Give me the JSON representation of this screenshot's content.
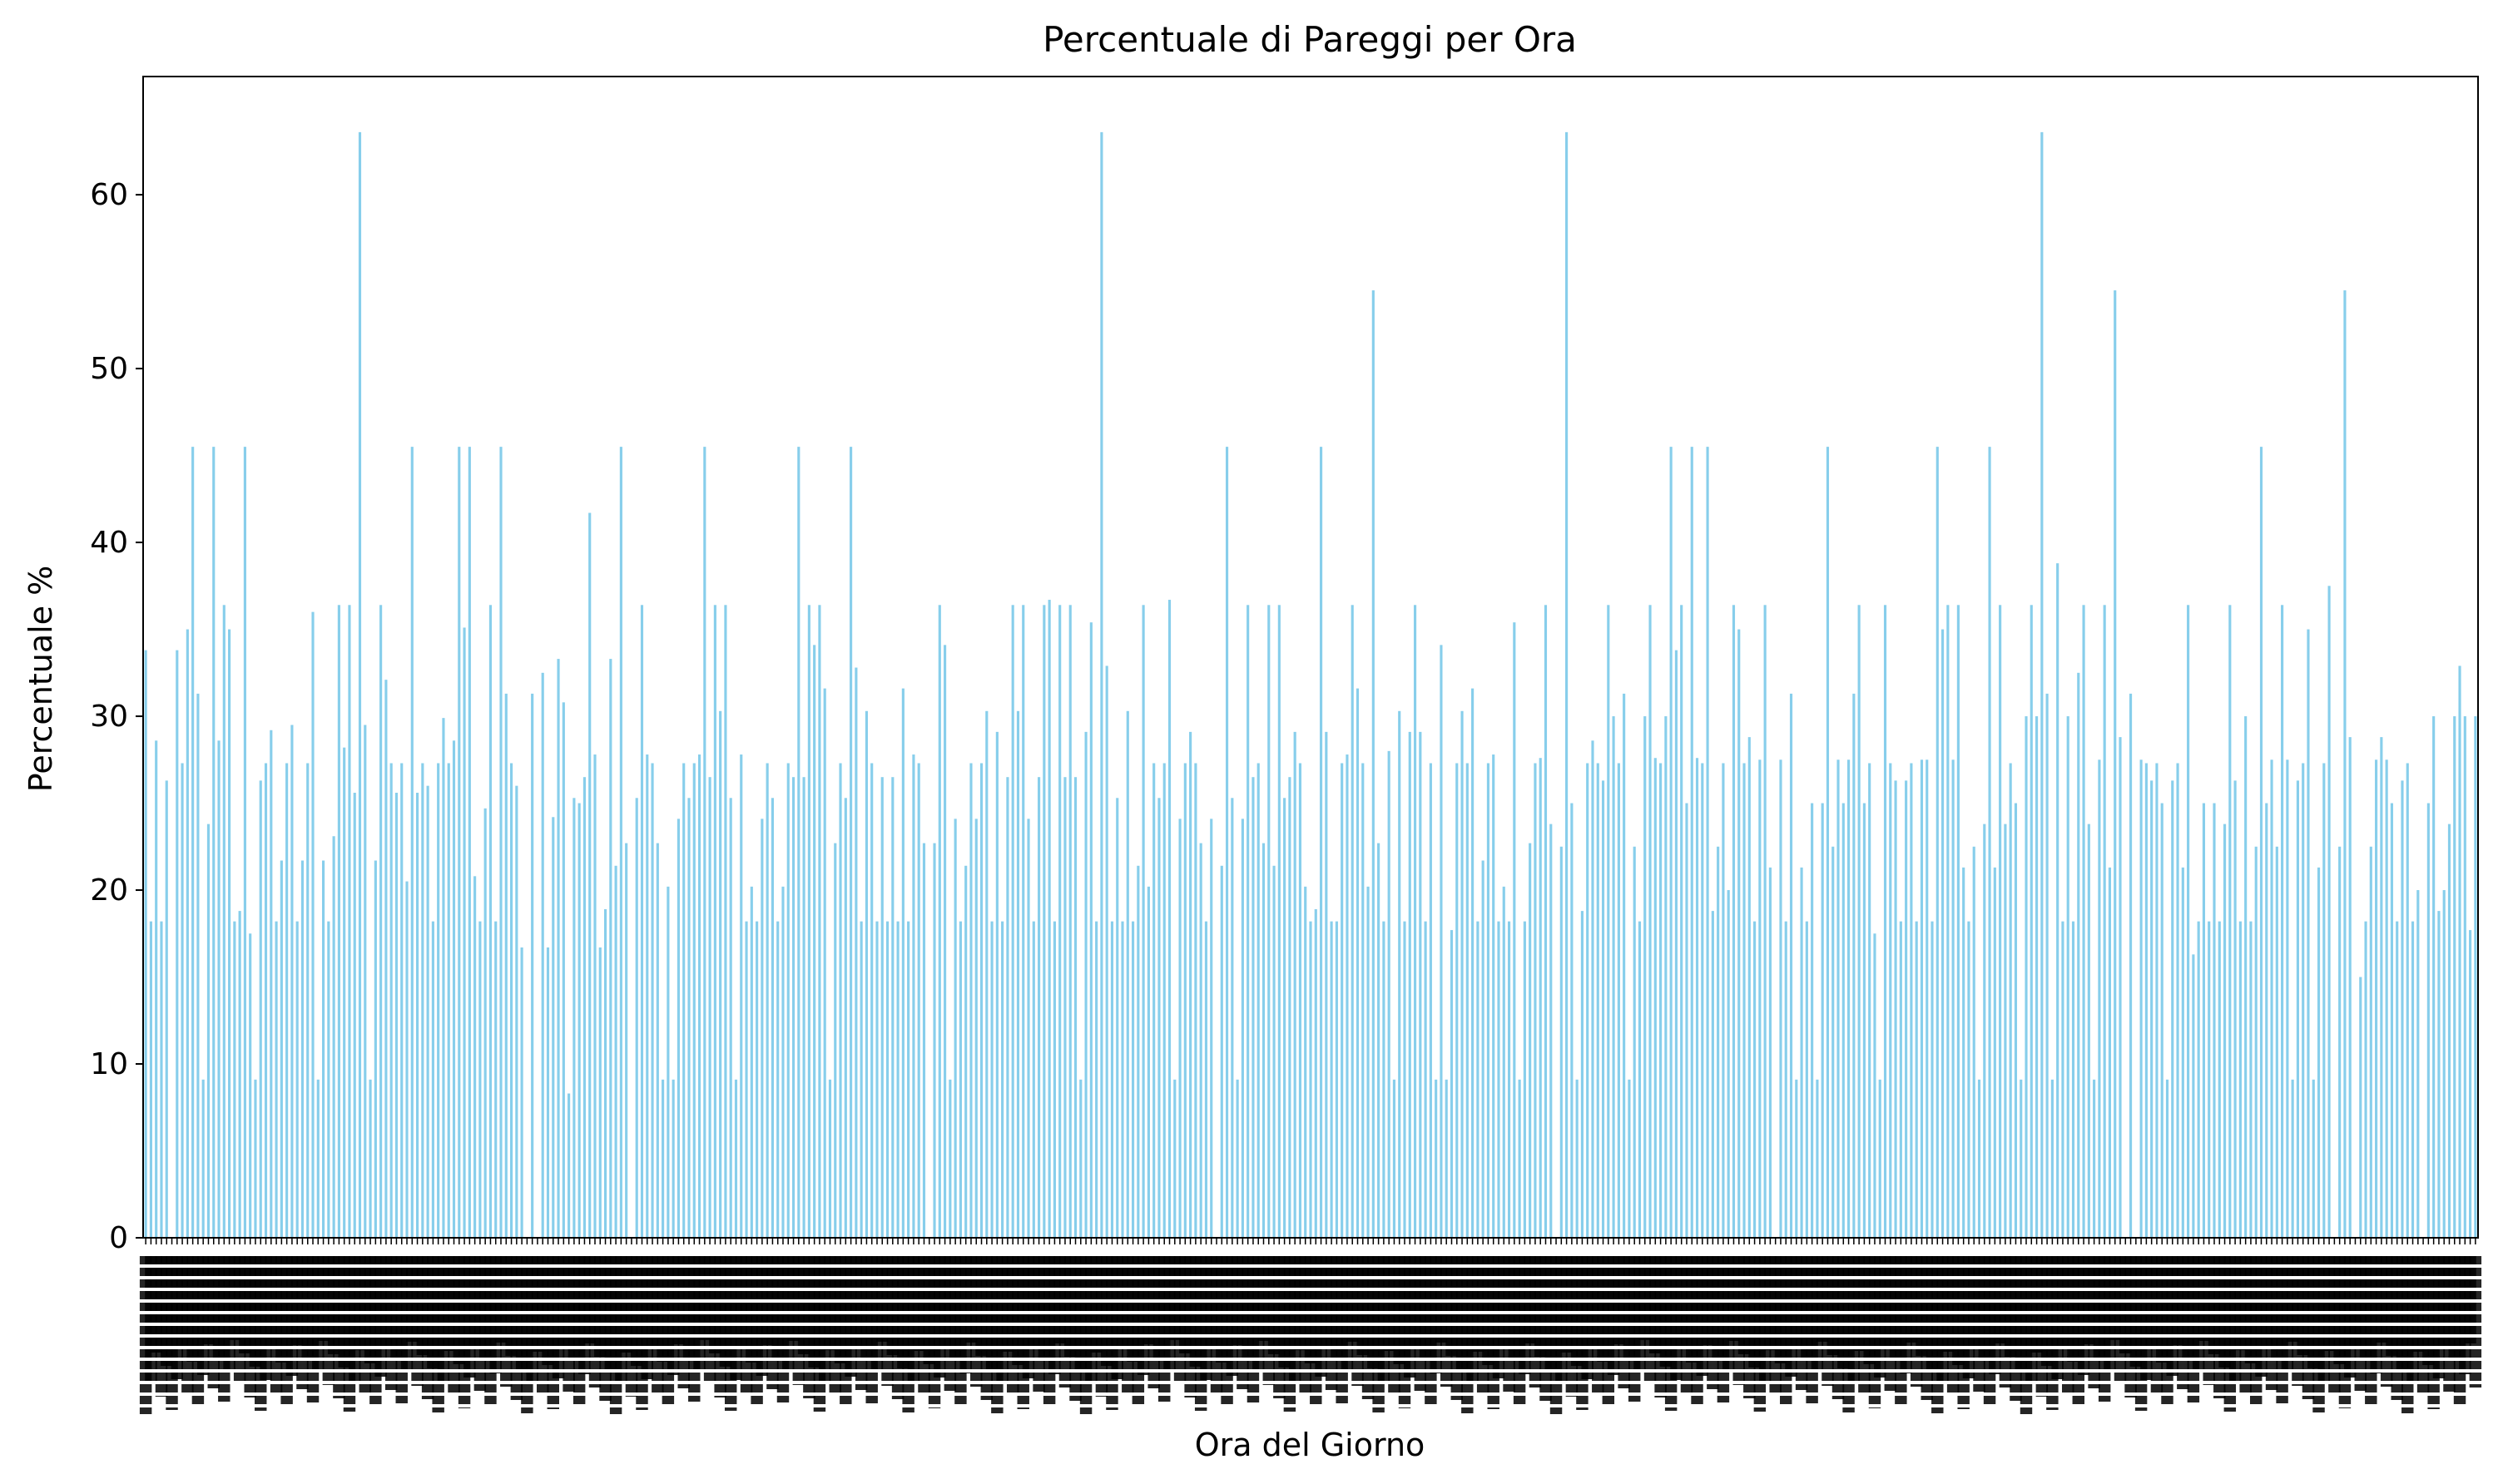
{
  "chart_data": {
    "type": "bar",
    "title": "Percentuale di Pareggi per Ora",
    "xlabel": "Ora del Giorno",
    "ylabel": "Percentuale %",
    "ylim": [
      0,
      66.8
    ],
    "yticks": [
      0,
      10,
      20,
      30,
      40,
      50,
      60
    ],
    "grid": false,
    "legend": "none",
    "bar_color": "#87ceeb",
    "x_tick_labels_legible": false,
    "values": [
      33.8,
      18.2,
      28.6,
      18.2,
      26.3,
      0,
      33.8,
      27.3,
      35,
      45.5,
      31.3,
      9.1,
      23.8,
      45.5,
      28.6,
      36.4,
      35,
      18.2,
      18.8,
      45.5,
      17.5,
      9.1,
      26.3,
      27.3,
      29.2,
      18.2,
      21.7,
      27.3,
      29.5,
      18.2,
      21.7,
      27.3,
      36,
      9.1,
      21.7,
      18.2,
      23.1,
      36.4,
      28.2,
      36.4,
      25.6,
      63.6,
      29.5,
      9.1,
      21.7,
      36.4,
      32.1,
      27.3,
      25.6,
      27.3,
      20.5,
      45.5,
      25.6,
      27.3,
      26,
      18.2,
      27.3,
      29.9,
      27.3,
      28.6,
      45.5,
      35.1,
      45.5,
      20.8,
      18.2,
      24.7,
      36.4,
      18.2,
      45.5,
      31.3,
      27.3,
      26,
      16.7,
      0,
      31.3,
      0,
      32.5,
      16.7,
      24.2,
      33.3,
      30.8,
      8.3,
      25.3,
      25,
      26.5,
      41.7,
      27.8,
      16.7,
      18.9,
      33.3,
      21.4,
      45.5,
      22.7,
      0,
      25.3,
      36.4,
      27.8,
      27.3,
      22.7,
      9.1,
      20.2,
      9.1,
      24.1,
      27.3,
      25.3,
      27.3,
      27.8,
      45.5,
      26.5,
      36.4,
      30.3,
      36.4,
      25.3,
      9.1,
      27.8,
      18.2,
      20.2,
      18.2,
      24.1,
      27.3,
      25.3,
      18.2,
      20.2,
      27.3,
      26.5,
      45.5,
      26.5,
      36.4,
      34.1,
      36.4,
      31.6,
      9.1,
      22.7,
      27.3,
      25.3,
      45.5,
      32.8,
      18.2,
      30.3,
      27.3,
      18.2,
      26.5,
      18.2,
      26.5,
      18.2,
      31.6,
      18.2,
      27.8,
      27.3,
      22.7,
      0,
      22.7,
      36.4,
      34.1,
      9.1,
      24.1,
      18.2,
      21.4,
      27.3,
      24.1,
      27.3,
      30.3,
      18.2,
      29.1,
      18.2,
      26.5,
      36.4,
      30.3,
      36.4,
      24.1,
      18.2,
      26.5,
      36.4,
      36.7,
      18.2,
      36.4,
      26.5,
      36.4,
      26.5,
      9.1,
      29.1,
      35.4,
      18.2,
      63.6,
      32.9,
      18.2,
      25.3,
      18.2,
      30.3,
      18.2,
      21.4,
      36.4,
      20.2,
      27.3,
      25.3,
      27.3,
      36.7,
      9.1,
      24.1,
      27.3,
      29.1,
      27.3,
      22.7,
      18.2,
      24.1,
      0,
      21.4,
      45.5,
      25.3,
      9.1,
      24.1,
      36.4,
      26.5,
      27.3,
      22.7,
      36.4,
      21.4,
      36.4,
      25.3,
      26.5,
      29.1,
      27.3,
      20.2,
      18.2,
      18.9,
      45.5,
      29.1,
      18.2,
      18.2,
      27.3,
      27.8,
      36.4,
      31.6,
      27.3,
      20.2,
      54.5,
      22.7,
      18.2,
      28,
      9.1,
      30.3,
      18.2,
      29.1,
      36.4,
      29.1,
      18.2,
      27.3,
      9.1,
      34.1,
      9.1,
      17.7,
      27.3,
      30.3,
      27.3,
      31.6,
      18.2,
      21.7,
      27.3,
      27.8,
      18.2,
      20.2,
      18.2,
      35.4,
      9.1,
      18.2,
      22.7,
      27.3,
      27.6,
      36.4,
      23.8,
      0,
      22.5,
      63.6,
      25,
      9.1,
      18.8,
      27.3,
      28.6,
      27.3,
      26.3,
      36.4,
      30,
      27.3,
      31.3,
      9.1,
      22.5,
      18.2,
      30,
      36.4,
      27.6,
      27.3,
      30,
      45.5,
      33.8,
      36.4,
      25,
      45.5,
      27.6,
      27.3,
      45.5,
      18.8,
      22.5,
      27.3,
      20,
      36.4,
      35,
      27.3,
      28.8,
      18.2,
      27.5,
      36.4,
      21.3,
      0,
      27.5,
      18.2,
      31.3,
      9.1,
      21.3,
      18.2,
      25,
      9.1,
      25,
      45.5,
      22.5,
      27.5,
      25,
      27.5,
      31.3,
      36.4,
      25,
      27.3,
      17.5,
      9.1,
      36.4,
      27.3,
      26.3,
      18.2,
      26.3,
      27.3,
      18.2,
      27.5,
      27.5,
      18.2,
      45.5,
      35,
      36.4,
      27.5,
      36.4,
      21.3,
      18.2,
      22.5,
      9.1,
      23.8,
      45.5,
      21.3,
      36.4,
      23.8,
      27.3,
      25,
      9.1,
      30,
      36.4,
      30,
      63.6,
      31.3,
      9.1,
      38.8,
      18.2,
      30,
      18.2,
      32.5,
      36.4,
      23.8,
      9.1,
      27.5,
      36.4,
      21.3,
      54.5,
      28.8,
      0,
      31.3,
      0,
      27.5,
      27.3,
      26.3,
      27.3,
      25,
      9.1,
      26.3,
      27.3,
      21.3,
      36.4,
      16.3,
      18.2,
      25,
      18.2,
      25,
      18.2,
      23.8,
      36.4,
      26.3,
      18.2,
      30,
      18.2,
      22.5,
      45.5,
      25,
      27.5,
      22.5,
      36.4,
      27.5,
      9.1,
      26.3,
      27.3,
      35,
      9.1,
      21.3,
      27.3,
      37.5,
      0,
      22.5,
      54.5,
      28.8,
      0,
      15,
      18.2,
      22.5,
      27.5,
      28.8,
      27.5,
      25,
      18.2,
      26.3,
      27.3,
      18.2,
      20,
      0,
      25,
      30,
      18.8,
      20,
      23.8,
      30,
      32.9,
      30,
      17.7,
      30
    ]
  }
}
